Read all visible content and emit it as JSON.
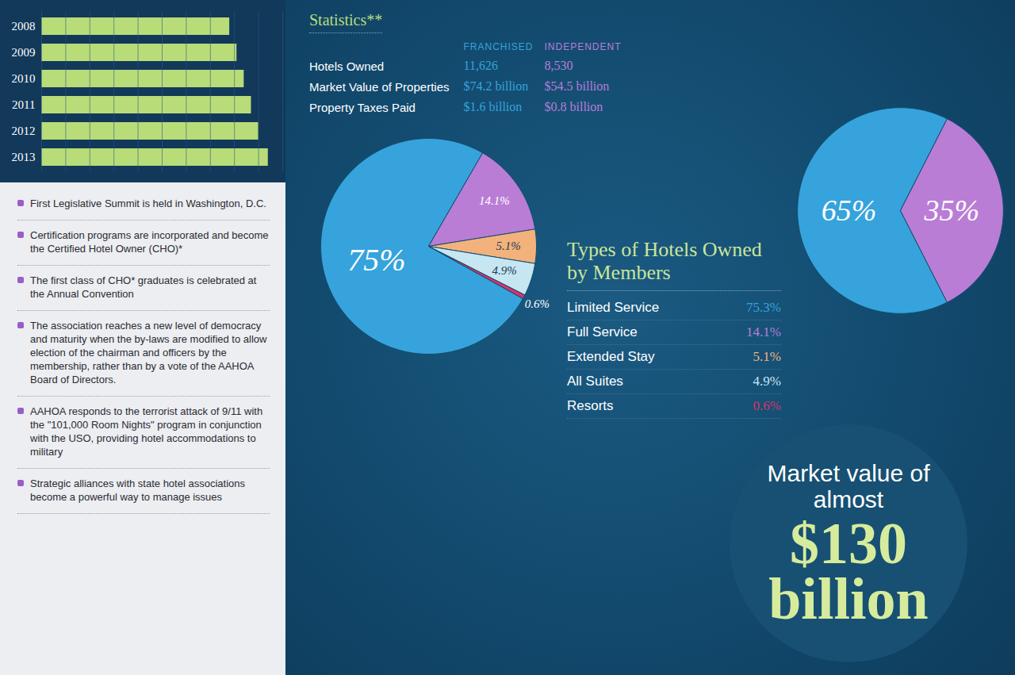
{
  "chart_data": [
    {
      "type": "bar",
      "orientation": "horizontal",
      "categories": [
        "2008",
        "2009",
        "2010",
        "2011",
        "2012",
        "2013"
      ],
      "values": [
        78,
        81,
        84,
        87,
        90,
        94
      ],
      "color": "#b8dc78",
      "xlim": [
        0,
        100
      ],
      "xticks": [
        0,
        10,
        20,
        30,
        40,
        50,
        60,
        70,
        80,
        90,
        100
      ],
      "grid": true,
      "tick_labels": "y"
    },
    {
      "type": "pie",
      "title": "Types of Hotels Owned by Members",
      "categories": [
        "Limited Service",
        "Full Service",
        "Extended Stay",
        "All Suites",
        "Resorts"
      ],
      "values": [
        75.3,
        14.1,
        5.1,
        4.9,
        0.6
      ],
      "value_labels": [
        "75%",
        "14.1%",
        "5.1%",
        "4.9%",
        "0.6%"
      ],
      "legend_value_labels": [
        "75.3%",
        "14.1%",
        "5.1%",
        "4.9%",
        "0.6%"
      ],
      "colors": [
        "#36a3dc",
        "#b97dd6",
        "#f3b27c",
        "#c6e6f2",
        "#d8336a"
      ],
      "data_labels": true,
      "legend": "right"
    },
    {
      "type": "pie",
      "values": [
        65,
        35
      ],
      "value_labels": [
        "65%",
        "35%"
      ],
      "colors": [
        "#36a3dc",
        "#b97dd6"
      ],
      "data_labels": true
    }
  ],
  "statistics": {
    "title": "Statistics**",
    "columns": [
      "FRANCHISED",
      "INDEPENDENT"
    ],
    "rows": [
      [
        "Hotels Owned",
        "11,626",
        "8,530"
      ],
      [
        "Market Value of Properties",
        "$74.2 billion",
        "$54.5 billion"
      ],
      [
        "Property Taxes Paid",
        "$1.6 billion",
        "$0.8 billion"
      ]
    ]
  },
  "callout": {
    "lead": "Market value of almost",
    "figure": "$130 billion"
  },
  "timeline": [
    "First Legislative Summit is held in Washington, D.C.",
    "Certification programs are incorporated and become the Certified Hotel Owner (CHO)*",
    "The first class of CHO* graduates is celebrated at the Annual Convention",
    "The association reaches a new level of democracy and maturity when the by-laws are modified to allow election of the chairman and officers by the membership, rather than by a vote of the AAHOA Board of Directors.",
    "AAHOA responds to the terrorist attack of 9/11 with the \"101,000 Room Nights\" program in conjunction with the USO, providing hotel accommodations to military",
    "Strategic alliances with state hotel associations become a powerful way to manage issues"
  ]
}
